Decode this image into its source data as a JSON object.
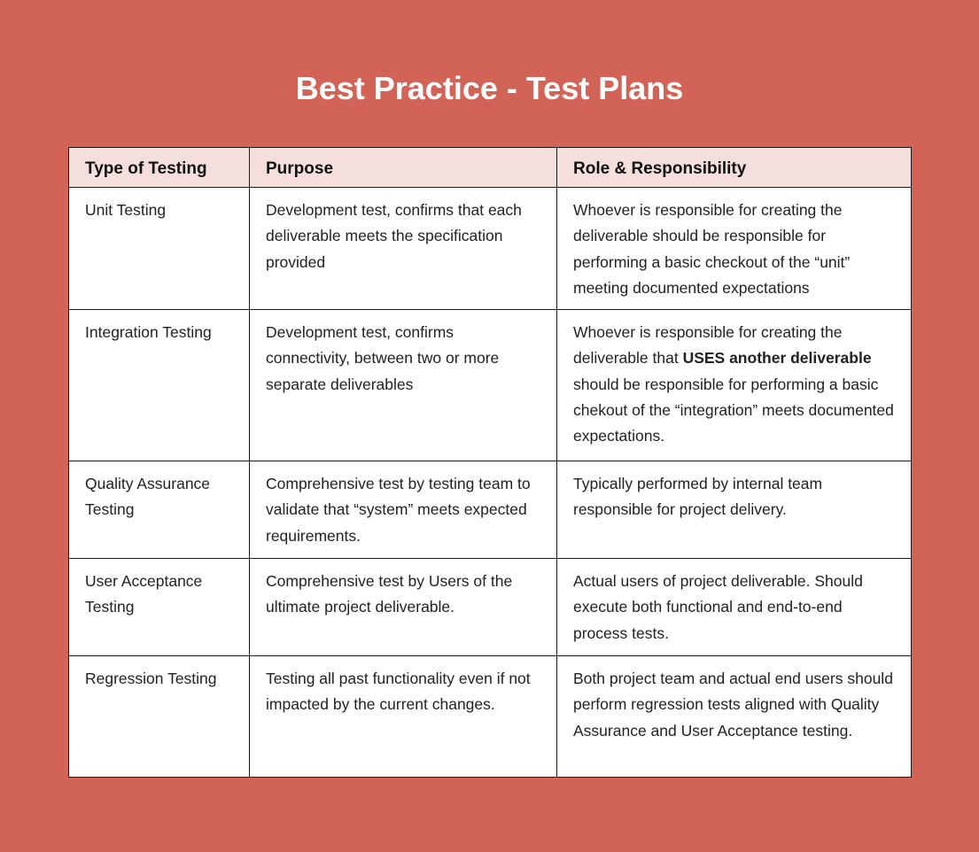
{
  "title": "Best Practice - Test Plans",
  "table": {
    "headers": [
      "Type of Testing",
      "Purpose",
      "Role & Responsibility"
    ],
    "rows": [
      {
        "type": "Unit Testing",
        "purpose": "Development test, confirms that each deliverable meets the specification provided",
        "role_before": "Whoever is responsible for creating the deliverable should be responsible for performing a basic checkout of the “unit” meeting documented expectations",
        "role_bold": "",
        "role_after": ""
      },
      {
        "type": "Integration Testing",
        "purpose": "Development test, confirms connectivity, between two or more separate deliverables",
        "role_before": "Whoever is responsible for creating the deliverable that ",
        "role_bold": "USES another deliverable",
        "role_after": " should be responsible for performing a basic chekout of the “integration” meets documented expectations."
      },
      {
        "type": "Quality Assurance Testing",
        "purpose": "Comprehensive test by testing team to validate that “system” meets expected requirements.",
        "role_before": "Typically performed by internal team responsible for project delivery.",
        "role_bold": "",
        "role_after": ""
      },
      {
        "type": "User Acceptance Testing",
        "purpose": "Comprehensive test by Users of the ultimate project deliverable.",
        "role_before": "Actual users of project deliverable. Should execute both functional and end-to-end process tests.",
        "role_bold": "",
        "role_after": ""
      },
      {
        "type": "Regression Testing",
        "purpose": "Testing all past functionality even if not impacted by the current changes.",
        "role_before": "Both project team and actual end users should perform regression tests aligned with Quality Assurance and User Acceptance testing.",
        "role_bold": "",
        "role_after": ""
      }
    ]
  }
}
